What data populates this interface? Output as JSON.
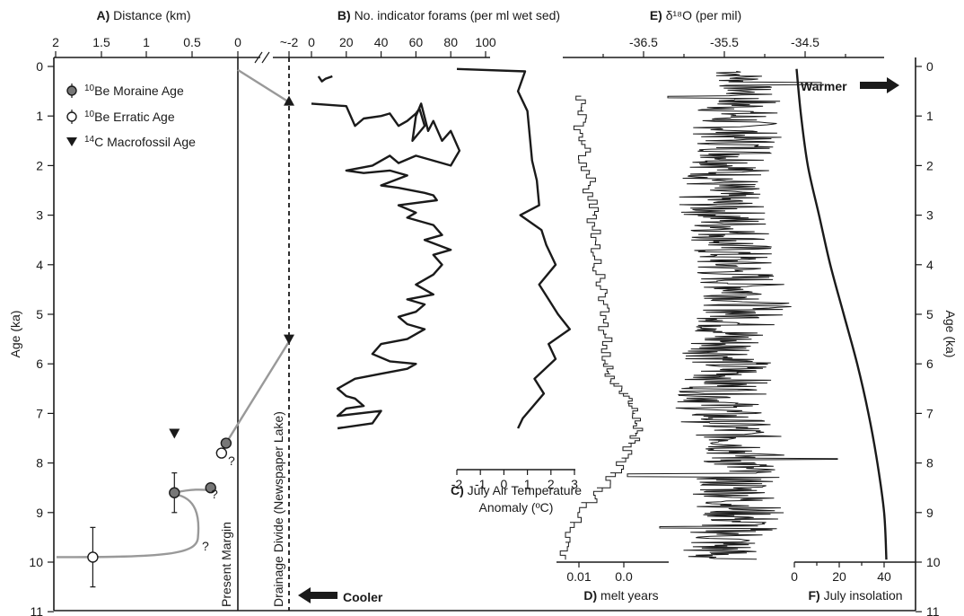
{
  "chart_data": {
    "type": "line",
    "y_axis": {
      "label": "Age (ka)",
      "range": [
        0,
        11
      ],
      "ticks": [
        "0",
        "1",
        "2",
        "3",
        "4",
        "5",
        "6",
        "7",
        "8",
        "9",
        "10",
        "11"
      ]
    },
    "panels": {
      "A": {
        "letter": "A)",
        "title": "Distance (km)",
        "ticks": [
          "2",
          "1.5",
          "1",
          "0.5",
          "0",
          "~-2"
        ],
        "legend": [
          {
            "sup": "10",
            "text": "Be Moraine Age",
            "marker": "filled-circle"
          },
          {
            "sup": "10",
            "text": "Be Erratic Age",
            "marker": "open-circle"
          },
          {
            "sup": "14",
            "text": "C Macrofossil Age",
            "marker": "triangle-down"
          }
        ],
        "moraine_ages": [
          {
            "distance_km": 0.13,
            "age_ka": 7.6,
            "err": 0
          },
          {
            "distance_km": 0.3,
            "age_ka": 8.5,
            "err": 0
          },
          {
            "distance_km": 0.7,
            "age_ka": 8.6,
            "err": 0.4
          }
        ],
        "erratic_ages": [
          {
            "distance_km": 0.18,
            "age_ka": 7.8,
            "err": 0
          },
          {
            "distance_km": 1.6,
            "age_ka": 9.9,
            "err": 0.6
          }
        ],
        "macrofossil_ages": [
          {
            "distance_km": 0.7,
            "age_ka": 7.4
          },
          {
            "distance_km": -2,
            "age_ka": 0.7
          },
          {
            "distance_km": -2,
            "age_ka": 5.5
          }
        ],
        "question_marks": [
          "?",
          "?",
          "?"
        ],
        "present_margin_label": "Present Margin",
        "drainage_divide_label": "Drainage Divide (Newspaper Lake)"
      },
      "B": {
        "letter": "B)",
        "title": "No. indicator forams (per ml wet sed)",
        "ticks": [
          "0",
          "20",
          "40",
          "60",
          "80",
          "100"
        ],
        "points": [
          [
            4,
            0.2
          ],
          [
            6,
            0.3
          ],
          [
            8,
            0.25
          ],
          [
            12,
            0.2
          ],
          [
            0,
            0.75
          ],
          [
            20,
            0.8
          ],
          [
            25,
            1.2
          ],
          [
            30,
            1.05
          ],
          [
            40,
            1.0
          ],
          [
            45,
            0.95
          ],
          [
            50,
            1.2
          ],
          [
            55,
            1.1
          ],
          [
            60,
            0.95
          ],
          [
            62,
            0.85
          ],
          [
            65,
            1.2
          ],
          [
            58,
            1.5
          ],
          [
            60,
            1.0
          ],
          [
            63,
            0.75
          ],
          [
            67,
            1.3
          ],
          [
            70,
            1.1
          ],
          [
            75,
            1.5
          ],
          [
            80,
            1.3
          ],
          [
            85,
            1.7
          ],
          [
            80,
            2.0
          ],
          [
            60,
            1.8
          ],
          [
            50,
            1.95
          ],
          [
            45,
            1.8
          ],
          [
            35,
            2.0
          ],
          [
            20,
            2.1
          ],
          [
            30,
            2.15
          ],
          [
            45,
            2.1
          ],
          [
            55,
            2.2
          ],
          [
            40,
            2.4
          ],
          [
            50,
            2.45
          ],
          [
            65,
            2.55
          ],
          [
            70,
            2.6
          ],
          [
            72,
            2.7
          ],
          [
            50,
            2.8
          ],
          [
            60,
            2.95
          ],
          [
            55,
            3.05
          ],
          [
            70,
            3.2
          ],
          [
            75,
            3.4
          ],
          [
            65,
            3.5
          ],
          [
            80,
            3.7
          ],
          [
            70,
            3.8
          ],
          [
            75,
            4.0
          ],
          [
            70,
            4.2
          ],
          [
            60,
            4.4
          ],
          [
            70,
            4.6
          ],
          [
            55,
            4.7
          ],
          [
            65,
            4.8
          ],
          [
            60,
            4.95
          ],
          [
            50,
            5.05
          ],
          [
            55,
            5.2
          ],
          [
            65,
            5.3
          ],
          [
            55,
            5.5
          ],
          [
            40,
            5.6
          ],
          [
            35,
            5.8
          ],
          [
            45,
            5.95
          ],
          [
            60,
            6.0
          ],
          [
            55,
            6.1
          ],
          [
            40,
            6.2
          ],
          [
            25,
            6.3
          ],
          [
            15,
            6.5
          ],
          [
            20,
            6.65
          ],
          [
            25,
            6.7
          ],
          [
            30,
            6.85
          ],
          [
            20,
            6.9
          ],
          [
            15,
            7.05
          ],
          [
            40,
            6.95
          ],
          [
            35,
            7.2
          ],
          [
            15,
            7.3
          ]
        ]
      },
      "C": {
        "letter": "C)",
        "title_line1": "July Air Temperature",
        "title_line2": "Anomaly (ºC)",
        "ticks": [
          "-2",
          "-1",
          "0",
          "1",
          "2",
          "3"
        ],
        "points": [
          [
            -2.0,
            0.05
          ],
          [
            0.9,
            0.1
          ],
          [
            0.6,
            0.5
          ],
          [
            1.0,
            0.9
          ],
          [
            1.1,
            1.4
          ],
          [
            1.2,
            1.9
          ],
          [
            1.4,
            2.3
          ],
          [
            1.5,
            2.8
          ],
          [
            0.7,
            3.0
          ],
          [
            1.6,
            3.3
          ],
          [
            1.8,
            3.6
          ],
          [
            2.2,
            4.0
          ],
          [
            1.5,
            4.4
          ],
          [
            1.9,
            4.7
          ],
          [
            2.3,
            5.0
          ],
          [
            2.8,
            5.3
          ],
          [
            1.9,
            5.6
          ],
          [
            2.2,
            5.9
          ],
          [
            1.3,
            6.3
          ],
          [
            1.7,
            6.6
          ],
          [
            0.8,
            7.1
          ],
          [
            0.6,
            7.3
          ]
        ]
      },
      "D": {
        "letter": "D)",
        "title": "melt years",
        "ticks": [
          "0.01",
          "0.0"
        ],
        "range": [
          0.015,
          -0.01
        ],
        "points": [
          [
            0.0095,
            0.6
          ],
          [
            0.009,
            0.9
          ],
          [
            0.01,
            1.2
          ],
          [
            0.0085,
            1.5
          ],
          [
            0.0095,
            1.8
          ],
          [
            0.0075,
            2.1
          ],
          [
            0.008,
            2.4
          ],
          [
            0.0065,
            2.7
          ],
          [
            0.007,
            3.0
          ],
          [
            0.0063,
            3.3
          ],
          [
            0.0065,
            3.6
          ],
          [
            0.0062,
            3.9
          ],
          [
            0.0052,
            4.2
          ],
          [
            0.0045,
            4.5
          ],
          [
            0.004,
            4.8
          ],
          [
            0.0045,
            5.1
          ],
          [
            0.0038,
            5.4
          ],
          [
            0.0042,
            5.7
          ],
          [
            0.0035,
            6.0
          ],
          [
            0.003,
            6.2
          ],
          [
            0.001,
            6.4
          ],
          [
            -0.001,
            6.6
          ],
          [
            -0.002,
            6.8
          ],
          [
            -0.0025,
            7.0
          ],
          [
            -0.003,
            7.2
          ],
          [
            -0.0025,
            7.4
          ],
          [
            -0.001,
            7.6
          ],
          [
            0.0005,
            7.9
          ],
          [
            0.003,
            8.2
          ],
          [
            0.006,
            8.5
          ],
          [
            0.0095,
            8.8
          ],
          [
            0.012,
            9.2
          ],
          [
            0.013,
            9.6
          ],
          [
            0.013,
            9.95
          ]
        ]
      },
      "E": {
        "letter": "E)",
        "title": "δ¹⁸O (per mil)",
        "ticks": [
          "-36.5",
          "-35.5",
          "-34.5"
        ],
        "range": [
          -37.5,
          -33.5
        ],
        "note": "high-frequency ice-core isotope record, ~-35.4 ± 0.6 per mil over 0.05–10 ka"
      },
      "F": {
        "letter": "F)",
        "title": "July insolation",
        "ticks": [
          "0",
          "20",
          "40"
        ],
        "points": [
          [
            1,
            0.05
          ],
          [
            3,
            1
          ],
          [
            6,
            2
          ],
          [
            11,
            3
          ],
          [
            16,
            4
          ],
          [
            22,
            5
          ],
          [
            28,
            6
          ],
          [
            33,
            7
          ],
          [
            37,
            8
          ],
          [
            40,
            9
          ],
          [
            41,
            9.95
          ]
        ]
      }
    },
    "annotations": {
      "warmer": "Warmer",
      "cooler": "Cooler"
    }
  }
}
